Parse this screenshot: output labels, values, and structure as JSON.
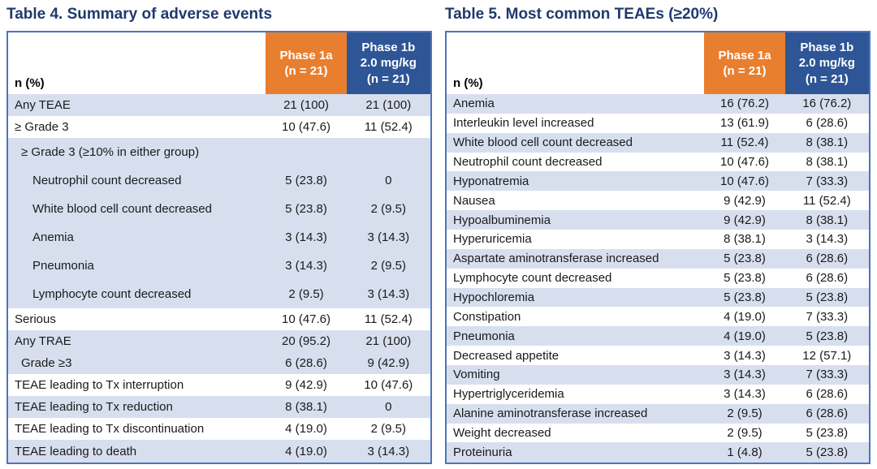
{
  "colors": {
    "title_text": "#1F3A6E",
    "phase1a_header_bg": "#E87F2F",
    "phase1b_header_bg": "#2E5596",
    "header_text": "#FFFFFF",
    "row_shade_bg": "#D7DFEF",
    "row_plain_bg": "#FFFFFF",
    "table_border": "#4C74BA",
    "body_text": "#1A1A1A"
  },
  "tables": [
    {
      "title": "Table 4. Summary of adverse events",
      "header": {
        "label": "n (%)",
        "col1": "Phase 1a\n(n = 21)",
        "col2": "Phase 1b\n2.0 mg/kg\n(n = 21)"
      },
      "rows": [
        {
          "label": "Any TEAE",
          "v1": "21 (100)",
          "v2": "21 (100)",
          "shade": true,
          "indent": 0
        },
        {
          "label": "≥ Grade 3",
          "v1": "10 (47.6)",
          "v2": "11 (52.4)",
          "shade": false,
          "indent": 0
        },
        {
          "label": "≥ Grade 3 (≥10% in either group)",
          "v1": "",
          "v2": "",
          "shade": true,
          "indent": 1,
          "subheader": true
        },
        {
          "label": "Neutrophil count decreased",
          "v1": "5 (23.8)",
          "v2": "0",
          "shade": true,
          "indent": 2
        },
        {
          "label": "White blood cell count decreased",
          "v1": "5 (23.8)",
          "v2": "2 (9.5)",
          "shade": true,
          "indent": 2
        },
        {
          "label": "Anemia",
          "v1": "3 (14.3)",
          "v2": "3 (14.3)",
          "shade": true,
          "indent": 2
        },
        {
          "label": "Pneumonia",
          "v1": "3 (14.3)",
          "v2": "2 (9.5)",
          "shade": true,
          "indent": 2
        },
        {
          "label": "Lymphocyte count decreased",
          "v1": "2 (9.5)",
          "v2": "3 (14.3)",
          "shade": true,
          "indent": 2
        },
        {
          "label": "Serious",
          "v1": "10 (47.6)",
          "v2": "11 (52.4)",
          "shade": false,
          "indent": 0
        },
        {
          "label": "Any TRAE",
          "v1": "20 (95.2)",
          "v2": "21 (100)",
          "shade": true,
          "indent": 0
        },
        {
          "label": "Grade ≥3",
          "v1": "6 (28.6)",
          "v2": "9 (42.9)",
          "shade": true,
          "indent": 1
        },
        {
          "label": "TEAE leading to Tx interruption",
          "v1": "9 (42.9)",
          "v2": "10 (47.6)",
          "shade": false,
          "indent": 0
        },
        {
          "label": "TEAE leading to Tx reduction",
          "v1": "8 (38.1)",
          "v2": "0",
          "shade": true,
          "indent": 0
        },
        {
          "label": "TEAE leading to Tx discontinuation",
          "v1": "4 (19.0)",
          "v2": "2 (9.5)",
          "shade": false,
          "indent": 0
        },
        {
          "label": "TEAE leading to death",
          "v1": "4 (19.0)",
          "v2": "3 (14.3)",
          "shade": true,
          "indent": 0
        }
      ]
    },
    {
      "title": "Table 5. Most common TEAEs (≥20%)",
      "header": {
        "label": "n (%)",
        "col1": "Phase 1a\n(n = 21)",
        "col2": "Phase 1b\n2.0 mg/kg\n(n = 21)"
      },
      "rows": [
        {
          "label": "Anemia",
          "v1": "16 (76.2)",
          "v2": "16 (76.2)",
          "shade": true,
          "indent": 0
        },
        {
          "label": "Interleukin level increased",
          "v1": "13 (61.9)",
          "v2": "6 (28.6)",
          "shade": false,
          "indent": 0
        },
        {
          "label": "White blood cell count decreased",
          "v1": "11 (52.4)",
          "v2": "8 (38.1)",
          "shade": true,
          "indent": 0
        },
        {
          "label": "Neutrophil count decreased",
          "v1": "10 (47.6)",
          "v2": "8 (38.1)",
          "shade": false,
          "indent": 0
        },
        {
          "label": "Hyponatremia",
          "v1": "10 (47.6)",
          "v2": "7 (33.3)",
          "shade": true,
          "indent": 0
        },
        {
          "label": "Nausea",
          "v1": "9 (42.9)",
          "v2": "11 (52.4)",
          "shade": false,
          "indent": 0
        },
        {
          "label": "Hypoalbuminemia",
          "v1": "9 (42.9)",
          "v2": "8 (38.1)",
          "shade": true,
          "indent": 0
        },
        {
          "label": "Hyperuricemia",
          "v1": "8 (38.1)",
          "v2": "3 (14.3)",
          "shade": false,
          "indent": 0
        },
        {
          "label": "Aspartate aminotransferase increased",
          "v1": "5 (23.8)",
          "v2": "6 (28.6)",
          "shade": true,
          "indent": 0
        },
        {
          "label": "Lymphocyte count decreased",
          "v1": "5 (23.8)",
          "v2": "6 (28.6)",
          "shade": false,
          "indent": 0
        },
        {
          "label": "Hypochloremia",
          "v1": "5 (23.8)",
          "v2": "5 (23.8)",
          "shade": true,
          "indent": 0
        },
        {
          "label": "Constipation",
          "v1": "4 (19.0)",
          "v2": "7 (33.3)",
          "shade": false,
          "indent": 0
        },
        {
          "label": "Pneumonia",
          "v1": "4 (19.0)",
          "v2": "5 (23.8)",
          "shade": true,
          "indent": 0
        },
        {
          "label": "Decreased appetite",
          "v1": "3 (14.3)",
          "v2": "12 (57.1)",
          "shade": false,
          "indent": 0
        },
        {
          "label": "Vomiting",
          "v1": "3 (14.3)",
          "v2": "7 (33.3)",
          "shade": true,
          "indent": 0
        },
        {
          "label": "Hypertriglyceridemia",
          "v1": "3 (14.3)",
          "v2": "6 (28.6)",
          "shade": false,
          "indent": 0
        },
        {
          "label": "Alanine aminotransferase increased",
          "v1": "2 (9.5)",
          "v2": "6 (28.6)",
          "shade": true,
          "indent": 0
        },
        {
          "label": "Weight decreased",
          "v1": "2 (9.5)",
          "v2": "5 (23.8)",
          "shade": false,
          "indent": 0
        },
        {
          "label": "Proteinuria",
          "v1": "1 (4.8)",
          "v2": "5 (23.8)",
          "shade": true,
          "indent": 0
        }
      ]
    }
  ]
}
